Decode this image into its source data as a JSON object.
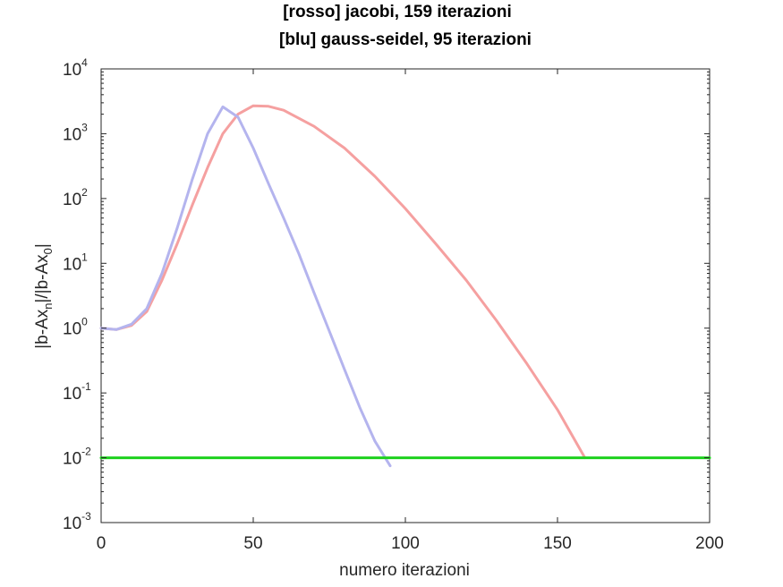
{
  "chart_data": {
    "type": "line",
    "title_line1": "[rosso] jacobi, 159 iterazioni",
    "title_line2": "[blu] gauss-seidel, 95 iterazioni",
    "xlabel": "numero iterazioni",
    "ylabel": {
      "part1": "|b-Ax",
      "sub1": "n",
      "part2": "|/|b-Ax",
      "sub2": "0",
      "part3": "|"
    },
    "xlim": [
      0,
      200
    ],
    "ylim": [
      0.001,
      10000
    ],
    "yscale": "log",
    "xticks": [
      0,
      50,
      100,
      150,
      200
    ],
    "xtick_labels": [
      "0",
      "50",
      "100",
      "150",
      "200"
    ],
    "yticks": [
      0.001,
      0.01,
      0.1,
      1,
      10,
      100,
      1000,
      10000
    ],
    "ytick_labels": [
      {
        "base": "10",
        "exp": "-3"
      },
      {
        "base": "10",
        "exp": "-2"
      },
      {
        "base": "10",
        "exp": "-1"
      },
      {
        "base": "10",
        "exp": "0"
      },
      {
        "base": "10",
        "exp": "1"
      },
      {
        "base": "10",
        "exp": "2"
      },
      {
        "base": "10",
        "exp": "3"
      },
      {
        "base": "10",
        "exp": "4"
      }
    ],
    "grid": false,
    "series": [
      {
        "color": "#f5a0a0",
        "x": [
          0,
          5,
          10,
          15,
          20,
          25,
          30,
          35,
          40,
          45,
          50,
          55,
          60,
          70,
          80,
          90,
          100,
          110,
          120,
          130,
          140,
          150,
          159
        ],
        "y": [
          1.0,
          0.95,
          1.1,
          1.8,
          5.5,
          20,
          80,
          300,
          1000,
          2000,
          2700,
          2650,
          2300,
          1300,
          600,
          220,
          70,
          20,
          5.5,
          1.3,
          0.28,
          0.055,
          0.01
        ]
      },
      {
        "color": "#b4b4ee",
        "x": [
          0,
          5,
          10,
          15,
          20,
          25,
          30,
          35,
          40,
          45,
          50,
          55,
          60,
          65,
          70,
          75,
          80,
          85,
          90,
          95
        ],
        "y": [
          1.0,
          0.95,
          1.15,
          2.0,
          7,
          35,
          200,
          1000,
          2600,
          1800,
          600,
          170,
          50,
          14,
          3.5,
          0.9,
          0.23,
          0.06,
          0.018,
          0.0075
        ]
      },
      {
        "color": "#1ed11e",
        "x": [
          0,
          200
        ],
        "y": [
          0.01,
          0.01
        ]
      }
    ]
  }
}
